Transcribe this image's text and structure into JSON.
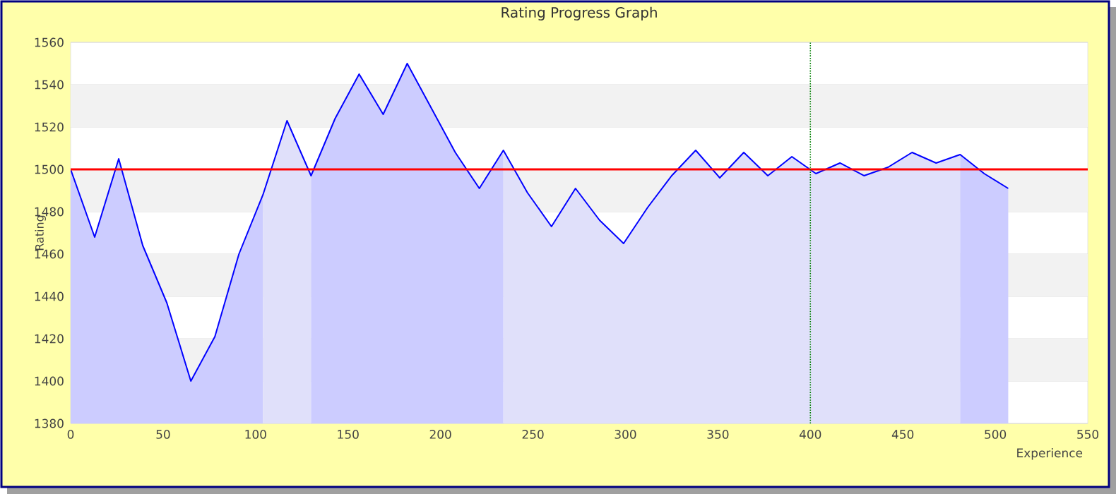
{
  "chart_data": {
    "type": "line",
    "title": "Rating Progress Graph",
    "xlabel": "Experience",
    "ylabel": "Rating",
    "xlim": [
      0,
      550
    ],
    "xticks": [
      0,
      50,
      100,
      150,
      200,
      250,
      300,
      350,
      400,
      450,
      500,
      550
    ],
    "ylim": [
      1380,
      1560
    ],
    "yticks": [
      1380,
      1400,
      1420,
      1440,
      1460,
      1480,
      1500,
      1520,
      1540,
      1560
    ],
    "grid": "y",
    "series": [
      {
        "type": "area",
        "color": "#ccccff",
        "x": [
          0,
          13,
          26,
          39,
          52,
          65,
          78,
          91,
          104
        ],
        "values": [
          1500,
          1468,
          1505,
          1464,
          1437,
          1400,
          1421,
          1460,
          1488
        ]
      },
      {
        "type": "area",
        "color": "#e0e0fa",
        "x": [
          104,
          117,
          130
        ],
        "values": [
          1488,
          1523,
          1497
        ]
      },
      {
        "type": "area",
        "color": "#ccccff",
        "x": [
          130,
          143,
          156,
          169,
          182,
          195,
          208,
          221,
          234
        ],
        "values": [
          1497,
          1524,
          1545,
          1526,
          1550,
          1529,
          1508,
          1491,
          1509
        ]
      },
      {
        "type": "area",
        "color": "#e0e0fa",
        "x": [
          234,
          247,
          260,
          273,
          286,
          299,
          312,
          325,
          338,
          351,
          364,
          377,
          390,
          403,
          416,
          429,
          442,
          455,
          468,
          481
        ],
        "values": [
          1509,
          1489,
          1473,
          1491,
          1476,
          1465,
          1482,
          1497,
          1509,
          1496,
          1508,
          1497,
          1506,
          1498,
          1503,
          1497,
          1501,
          1508,
          1503,
          1507
        ]
      },
      {
        "type": "area",
        "color": "#ccccff",
        "x": [
          481,
          494,
          507
        ],
        "values": [
          1507,
          1498,
          1491
        ]
      },
      {
        "color": "#0000ff",
        "x": [
          0,
          13,
          26,
          39,
          52,
          65,
          78,
          91,
          104,
          117,
          130,
          143,
          156,
          169,
          182,
          195,
          208,
          221,
          234,
          247,
          260,
          273,
          286,
          299,
          312,
          325,
          338,
          351,
          364,
          377,
          390,
          403,
          416,
          429,
          442,
          455,
          468,
          481,
          494,
          507
        ],
        "values": [
          1500,
          1468,
          1505,
          1464,
          1437,
          1400,
          1421,
          1460,
          1488,
          1523,
          1497,
          1524,
          1545,
          1526,
          1550,
          1529,
          1508,
          1491,
          1509,
          1489,
          1473,
          1491,
          1476,
          1465,
          1482,
          1497,
          1509,
          1496,
          1508,
          1497,
          1506,
          1498,
          1503,
          1497,
          1501,
          1508,
          1503,
          1507,
          1498,
          1491
        ]
      }
    ],
    "ref_lines": [
      {
        "axis": "y",
        "value": 1500,
        "color": "#ff0000",
        "line_style": "solid"
      },
      {
        "axis": "x",
        "value": 400,
        "color": "#008000",
        "line_style": "dotted"
      }
    ]
  }
}
